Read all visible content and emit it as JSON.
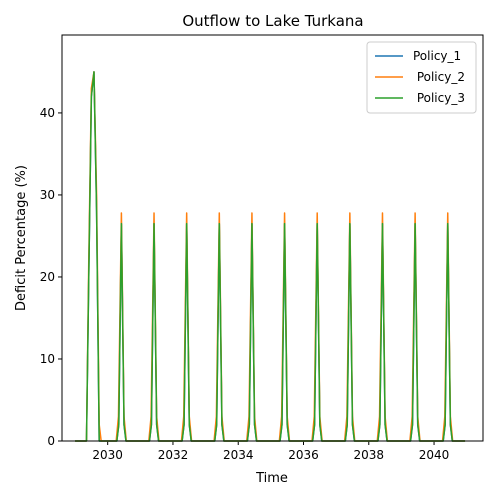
{
  "chart_data": {
    "type": "line",
    "title": "Outflow to Lake Turkana",
    "xlabel": "Time",
    "ylabel": "Deficit Percentage (%)",
    "xlim": [
      2028.6,
      2041.5
    ],
    "ylim": [
      0,
      49.5
    ],
    "xticks": [
      2030,
      2032,
      2034,
      2036,
      2038,
      2040
    ],
    "yticks": [
      0,
      10,
      20,
      30,
      40
    ],
    "legend_position": "top-right",
    "series": [
      {
        "name": "Policy_1",
        "color": "#1f77b4",
        "points": [
          [
            2029.0,
            0
          ],
          [
            2029.35,
            0
          ],
          [
            2029.42,
            20
          ],
          [
            2029.5,
            42
          ],
          [
            2029.58,
            45
          ],
          [
            2029.66,
            28
          ],
          [
            2029.74,
            0
          ],
          [
            2030.28,
            0
          ],
          [
            2030.34,
            2
          ],
          [
            2030.42,
            26.5
          ],
          [
            2030.5,
            2
          ],
          [
            2030.56,
            0
          ],
          [
            2031.28,
            0
          ],
          [
            2031.34,
            2
          ],
          [
            2031.42,
            26.5
          ],
          [
            2031.5,
            2
          ],
          [
            2031.56,
            0
          ],
          [
            2032.28,
            0
          ],
          [
            2032.34,
            2
          ],
          [
            2032.42,
            26.5
          ],
          [
            2032.5,
            2
          ],
          [
            2032.56,
            0
          ],
          [
            2033.28,
            0
          ],
          [
            2033.34,
            2
          ],
          [
            2033.42,
            26.5
          ],
          [
            2033.5,
            2
          ],
          [
            2033.56,
            0
          ],
          [
            2034.28,
            0
          ],
          [
            2034.34,
            2
          ],
          [
            2034.42,
            26.5
          ],
          [
            2034.5,
            2
          ],
          [
            2034.56,
            0
          ],
          [
            2035.28,
            0
          ],
          [
            2035.34,
            2
          ],
          [
            2035.42,
            26.5
          ],
          [
            2035.5,
            2
          ],
          [
            2035.56,
            0
          ],
          [
            2036.28,
            0
          ],
          [
            2036.34,
            2
          ],
          [
            2036.42,
            26.5
          ],
          [
            2036.5,
            2
          ],
          [
            2036.56,
            0
          ],
          [
            2037.28,
            0
          ],
          [
            2037.34,
            2
          ],
          [
            2037.42,
            26.5
          ],
          [
            2037.5,
            2
          ],
          [
            2037.56,
            0
          ],
          [
            2038.28,
            0
          ],
          [
            2038.34,
            2
          ],
          [
            2038.42,
            26.5
          ],
          [
            2038.5,
            2
          ],
          [
            2038.56,
            0
          ],
          [
            2039.28,
            0
          ],
          [
            2039.34,
            2
          ],
          [
            2039.42,
            26.5
          ],
          [
            2039.5,
            2
          ],
          [
            2039.56,
            0
          ],
          [
            2040.28,
            0
          ],
          [
            2040.34,
            2
          ],
          [
            2040.42,
            26.5
          ],
          [
            2040.5,
            2
          ],
          [
            2040.56,
            0
          ],
          [
            2040.95,
            0
          ]
        ]
      },
      {
        "name": " Policy_2",
        "color": "#ff7f0e",
        "points": [
          [
            2029.0,
            0
          ],
          [
            2029.35,
            0
          ],
          [
            2029.42,
            22
          ],
          [
            2029.5,
            43
          ],
          [
            2029.58,
            45
          ],
          [
            2029.66,
            30
          ],
          [
            2029.74,
            2
          ],
          [
            2029.8,
            0
          ],
          [
            2030.26,
            0
          ],
          [
            2030.33,
            3
          ],
          [
            2030.42,
            27.8
          ],
          [
            2030.5,
            3
          ],
          [
            2030.57,
            0
          ],
          [
            2031.26,
            0
          ],
          [
            2031.33,
            3
          ],
          [
            2031.42,
            27.8
          ],
          [
            2031.5,
            3
          ],
          [
            2031.57,
            0
          ],
          [
            2032.26,
            0
          ],
          [
            2032.33,
            3
          ],
          [
            2032.42,
            27.8
          ],
          [
            2032.5,
            3
          ],
          [
            2032.57,
            0
          ],
          [
            2033.26,
            0
          ],
          [
            2033.33,
            3
          ],
          [
            2033.42,
            27.8
          ],
          [
            2033.5,
            3
          ],
          [
            2033.57,
            0
          ],
          [
            2034.26,
            0
          ],
          [
            2034.33,
            3
          ],
          [
            2034.42,
            27.8
          ],
          [
            2034.5,
            3
          ],
          [
            2034.57,
            0
          ],
          [
            2035.26,
            0
          ],
          [
            2035.33,
            3
          ],
          [
            2035.42,
            27.8
          ],
          [
            2035.5,
            3
          ],
          [
            2035.57,
            0
          ],
          [
            2036.26,
            0
          ],
          [
            2036.33,
            3
          ],
          [
            2036.42,
            27.8
          ],
          [
            2036.5,
            3
          ],
          [
            2036.57,
            0
          ],
          [
            2037.26,
            0
          ],
          [
            2037.33,
            3
          ],
          [
            2037.42,
            27.8
          ],
          [
            2037.5,
            3
          ],
          [
            2037.57,
            0
          ],
          [
            2038.26,
            0
          ],
          [
            2038.33,
            3
          ],
          [
            2038.42,
            27.8
          ],
          [
            2038.5,
            3
          ],
          [
            2038.57,
            0
          ],
          [
            2039.26,
            0
          ],
          [
            2039.33,
            3
          ],
          [
            2039.42,
            27.8
          ],
          [
            2039.5,
            3
          ],
          [
            2039.57,
            0
          ],
          [
            2040.26,
            0
          ],
          [
            2040.33,
            3
          ],
          [
            2040.42,
            27.8
          ],
          [
            2040.5,
            3
          ],
          [
            2040.57,
            0
          ],
          [
            2040.95,
            0
          ]
        ]
      },
      {
        "name": " Policy_3",
        "color": "#2ca02c",
        "points": [
          [
            2029.0,
            0
          ],
          [
            2029.35,
            0
          ],
          [
            2029.42,
            20
          ],
          [
            2029.5,
            42
          ],
          [
            2029.58,
            45
          ],
          [
            2029.66,
            28
          ],
          [
            2029.74,
            0
          ],
          [
            2030.28,
            0
          ],
          [
            2030.34,
            2
          ],
          [
            2030.42,
            26.5
          ],
          [
            2030.5,
            2
          ],
          [
            2030.56,
            0
          ],
          [
            2031.28,
            0
          ],
          [
            2031.34,
            2
          ],
          [
            2031.42,
            26.5
          ],
          [
            2031.5,
            2
          ],
          [
            2031.56,
            0
          ],
          [
            2032.28,
            0
          ],
          [
            2032.34,
            2
          ],
          [
            2032.42,
            26.5
          ],
          [
            2032.5,
            2
          ],
          [
            2032.56,
            0
          ],
          [
            2033.28,
            0
          ],
          [
            2033.34,
            2
          ],
          [
            2033.42,
            26.5
          ],
          [
            2033.5,
            2
          ],
          [
            2033.56,
            0
          ],
          [
            2034.28,
            0
          ],
          [
            2034.34,
            2
          ],
          [
            2034.42,
            26.5
          ],
          [
            2034.5,
            2
          ],
          [
            2034.56,
            0
          ],
          [
            2035.28,
            0
          ],
          [
            2035.34,
            2
          ],
          [
            2035.42,
            26.5
          ],
          [
            2035.5,
            2
          ],
          [
            2035.56,
            0
          ],
          [
            2036.28,
            0
          ],
          [
            2036.34,
            2
          ],
          [
            2036.42,
            26.5
          ],
          [
            2036.5,
            2
          ],
          [
            2036.56,
            0
          ],
          [
            2037.28,
            0
          ],
          [
            2037.34,
            2
          ],
          [
            2037.42,
            26.5
          ],
          [
            2037.5,
            2
          ],
          [
            2037.56,
            0
          ],
          [
            2038.28,
            0
          ],
          [
            2038.34,
            2
          ],
          [
            2038.42,
            26.5
          ],
          [
            2038.5,
            2
          ],
          [
            2038.56,
            0
          ],
          [
            2039.28,
            0
          ],
          [
            2039.34,
            2
          ],
          [
            2039.42,
            26.5
          ],
          [
            2039.5,
            2
          ],
          [
            2039.56,
            0
          ],
          [
            2040.28,
            0
          ],
          [
            2040.34,
            2
          ],
          [
            2040.42,
            26.5
          ],
          [
            2040.5,
            2
          ],
          [
            2040.56,
            0
          ],
          [
            2040.95,
            0
          ]
        ]
      }
    ]
  }
}
